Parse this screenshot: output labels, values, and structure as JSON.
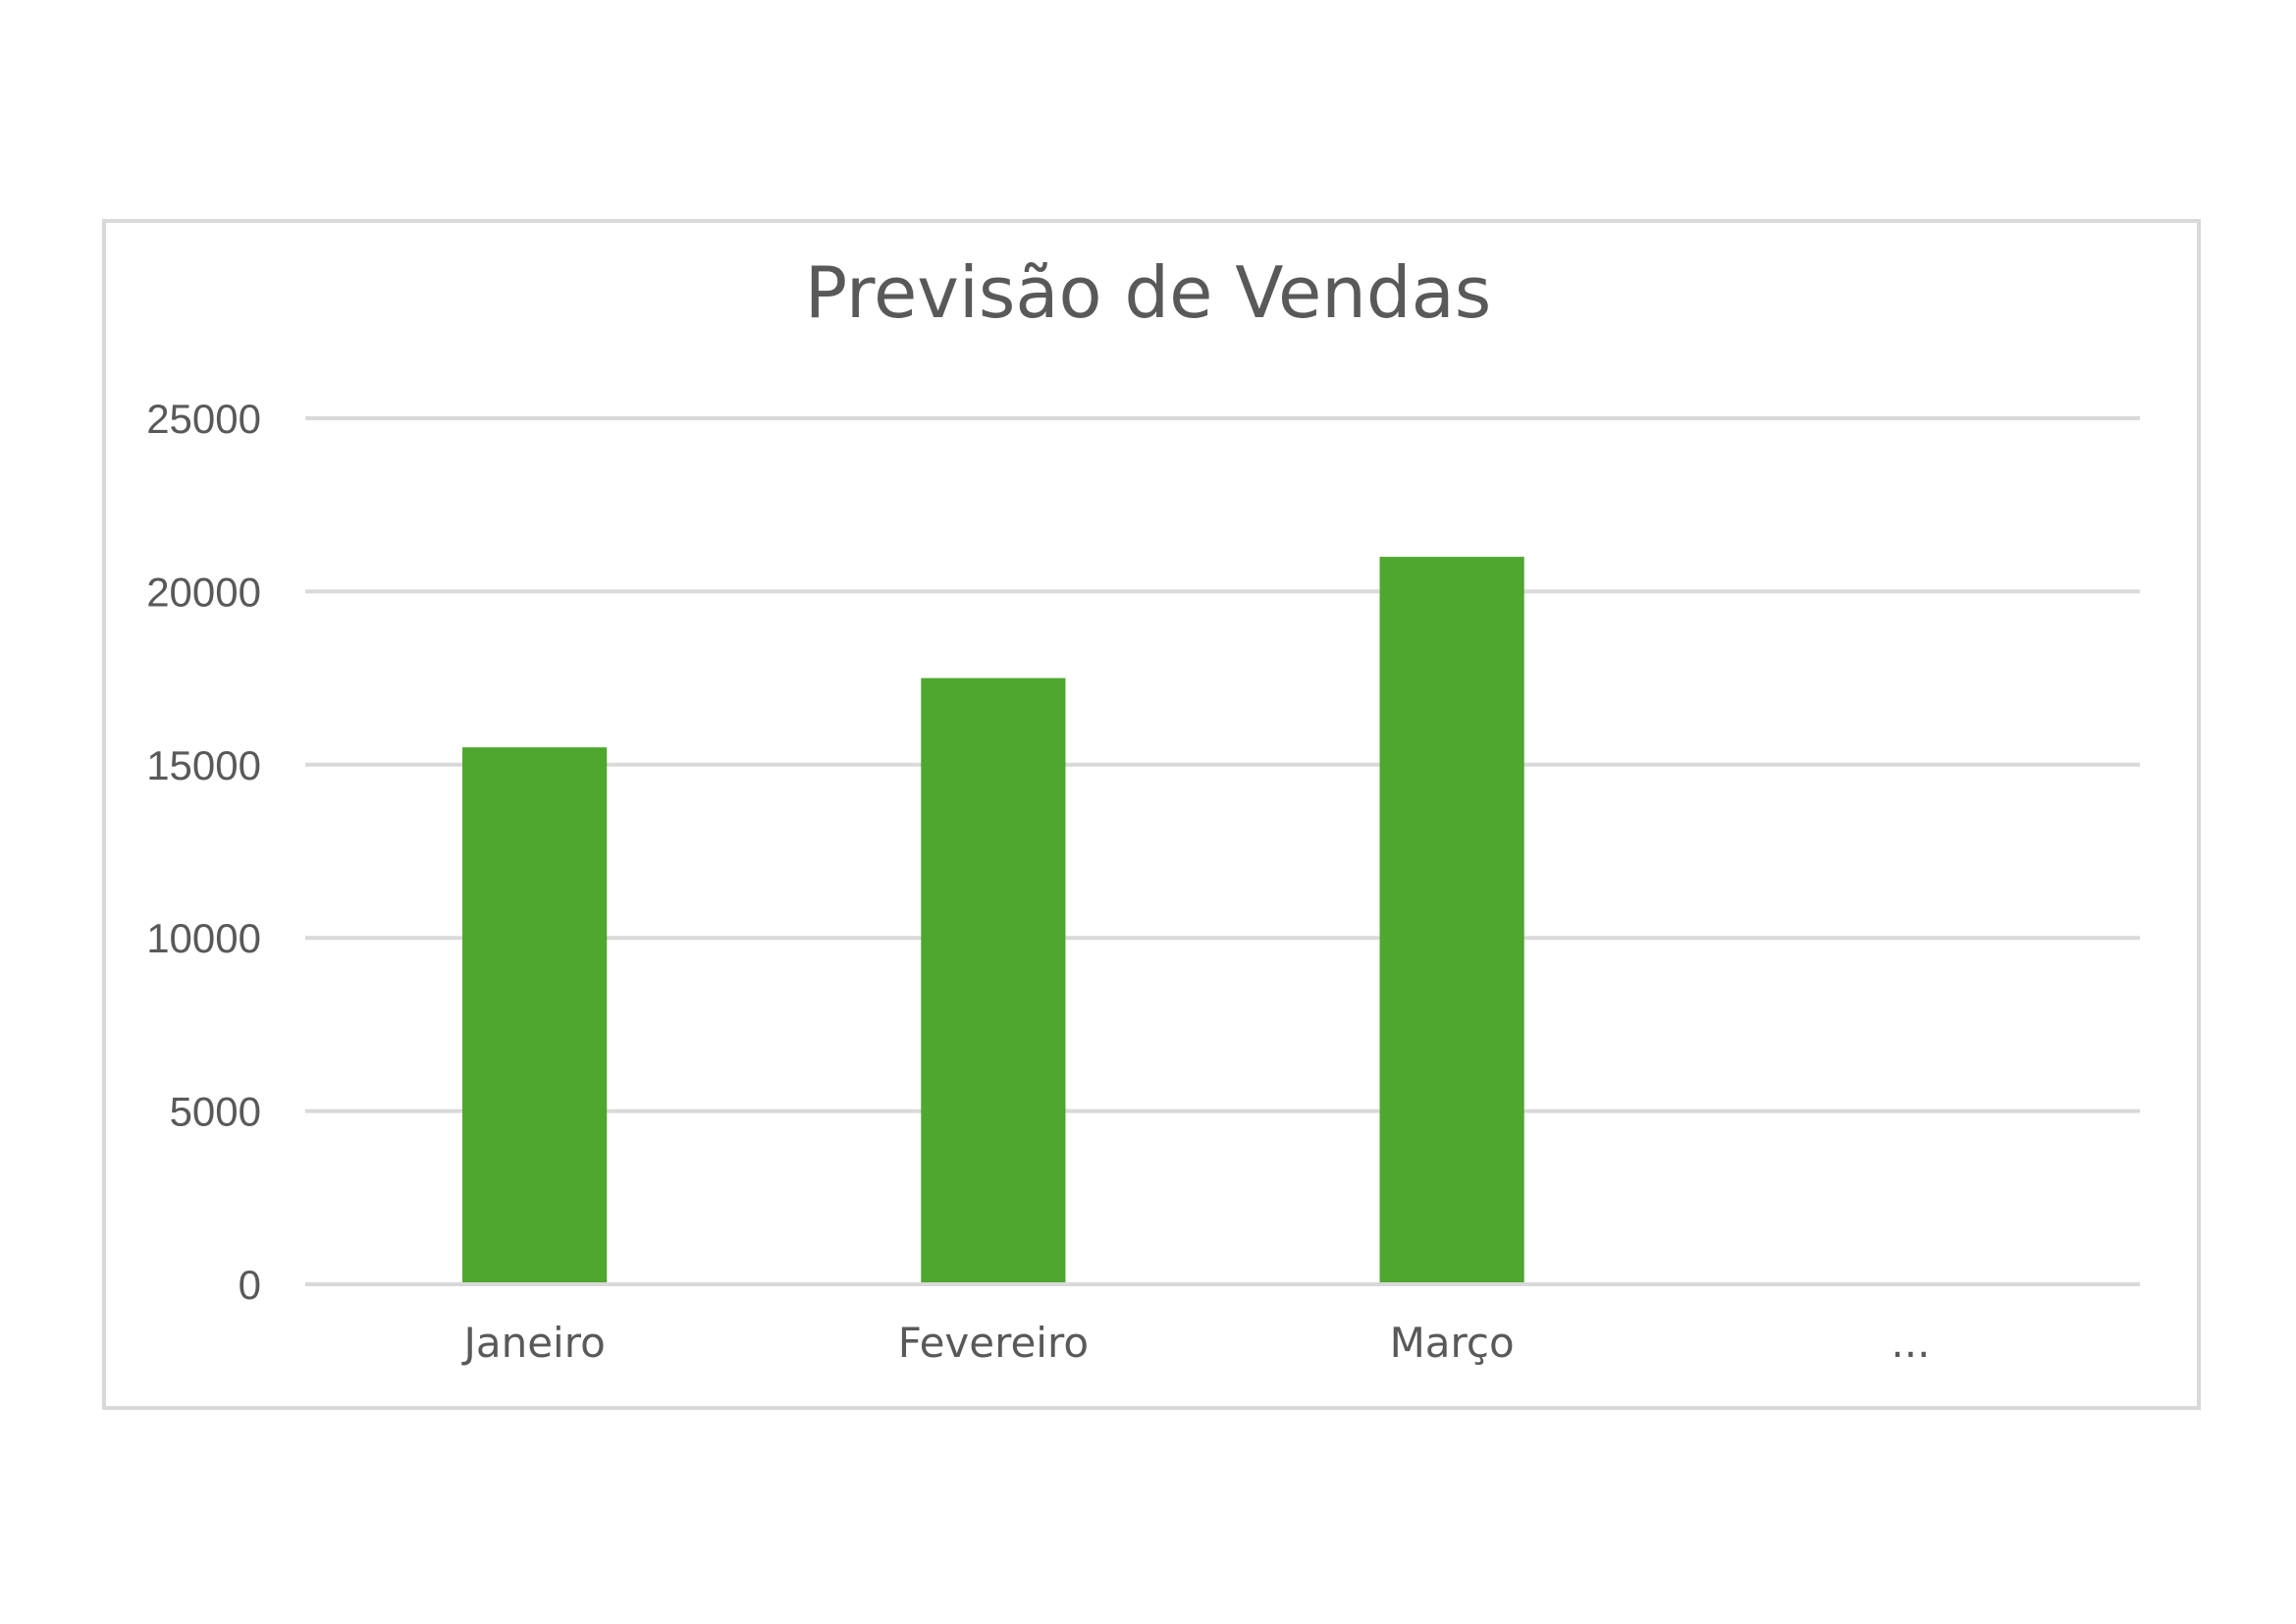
{
  "chart_data": {
    "type": "bar",
    "title": "Previsão de Vendas",
    "xlabel": "",
    "ylabel": "",
    "categories": [
      "Janeiro",
      "Fevereiro",
      "Março",
      "..."
    ],
    "values": [
      15500,
      17500,
      21000,
      null
    ],
    "ylim": [
      0,
      25000
    ],
    "yticks": [
      0,
      5000,
      10000,
      15000,
      20000,
      25000
    ],
    "ytick_labels": [
      "0",
      "5000",
      "10000",
      "15000",
      "20000",
      "25000"
    ],
    "grid": true,
    "legend": "none",
    "colors": {
      "bar": "#4ea72e",
      "gridline": "#d9d9d9",
      "text": "#595959",
      "frame": "#d9d9d9"
    }
  }
}
